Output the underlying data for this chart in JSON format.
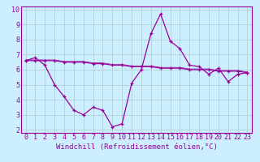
{
  "title": "",
  "xlabel": "Windchill (Refroidissement éolien,°C)",
  "bg_color": "#cceeff",
  "line_color": "#990099",
  "grid_color": "#aacccc",
  "x_hours": [
    0,
    1,
    2,
    3,
    4,
    5,
    6,
    7,
    8,
    9,
    10,
    11,
    12,
    13,
    14,
    15,
    16,
    17,
    18,
    19,
    20,
    21,
    22,
    23
  ],
  "windchill": [
    6.6,
    6.8,
    6.3,
    5.0,
    4.2,
    3.3,
    3.0,
    3.5,
    3.3,
    2.2,
    2.4,
    5.1,
    6.0,
    8.4,
    9.7,
    7.9,
    7.4,
    6.3,
    6.2,
    5.7,
    6.1,
    5.2,
    5.7,
    5.8
  ],
  "temp": [
    6.6,
    6.6,
    6.6,
    6.6,
    6.5,
    6.5,
    6.5,
    6.4,
    6.4,
    6.3,
    6.3,
    6.2,
    6.2,
    6.2,
    6.1,
    6.1,
    6.1,
    6.0,
    6.0,
    6.0,
    5.9,
    5.9,
    5.9,
    5.8
  ],
  "temp2": [
    6.65,
    6.65,
    6.65,
    6.65,
    6.55,
    6.55,
    6.55,
    6.45,
    6.45,
    6.35,
    6.35,
    6.25,
    6.25,
    6.25,
    6.15,
    6.15,
    6.15,
    6.05,
    6.05,
    6.05,
    5.95,
    5.95,
    5.95,
    5.85
  ],
  "xlim": [
    -0.5,
    23.5
  ],
  "ylim": [
    1.8,
    10.2
  ],
  "xticks": [
    0,
    1,
    2,
    3,
    4,
    5,
    6,
    7,
    8,
    9,
    10,
    11,
    12,
    13,
    14,
    15,
    16,
    17,
    18,
    19,
    20,
    21,
    22,
    23
  ],
  "yticks": [
    2,
    3,
    4,
    5,
    6,
    7,
    8,
    9,
    10
  ],
  "tick_fontsize": 6,
  "xlabel_fontsize": 6.5
}
